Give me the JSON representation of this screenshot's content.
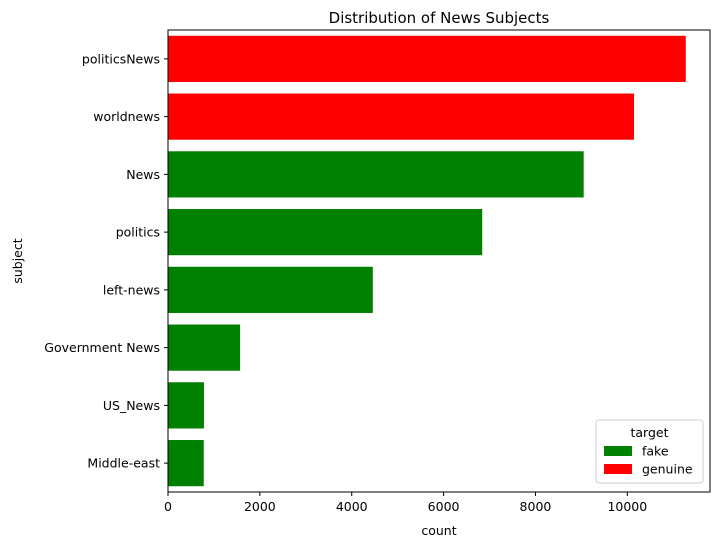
{
  "chart_data": {
    "type": "bar",
    "orientation": "horizontal",
    "title": "Distribution of News Subjects",
    "xlabel": "count",
    "ylabel": "subject",
    "xlim": [
      0,
      11800
    ],
    "xticks": [
      0,
      2000,
      4000,
      6000,
      8000,
      10000
    ],
    "grid": false,
    "categories": [
      "politicsNews",
      "worldnews",
      "News",
      "politics",
      "left-news",
      "Government News",
      "US_News",
      "Middle-east"
    ],
    "values": [
      11272,
      10145,
      9050,
      6841,
      4459,
      1570,
      783,
      778
    ],
    "targets": [
      "genuine",
      "genuine",
      "fake",
      "fake",
      "fake",
      "fake",
      "fake",
      "fake"
    ],
    "legend": {
      "title": "target",
      "position": "lower-right",
      "entries": [
        {
          "label": "fake",
          "color": "#008000"
        },
        {
          "label": "genuine",
          "color": "#ff0000"
        }
      ]
    },
    "colors": {
      "fake": "#008000",
      "genuine": "#ff0000"
    }
  }
}
